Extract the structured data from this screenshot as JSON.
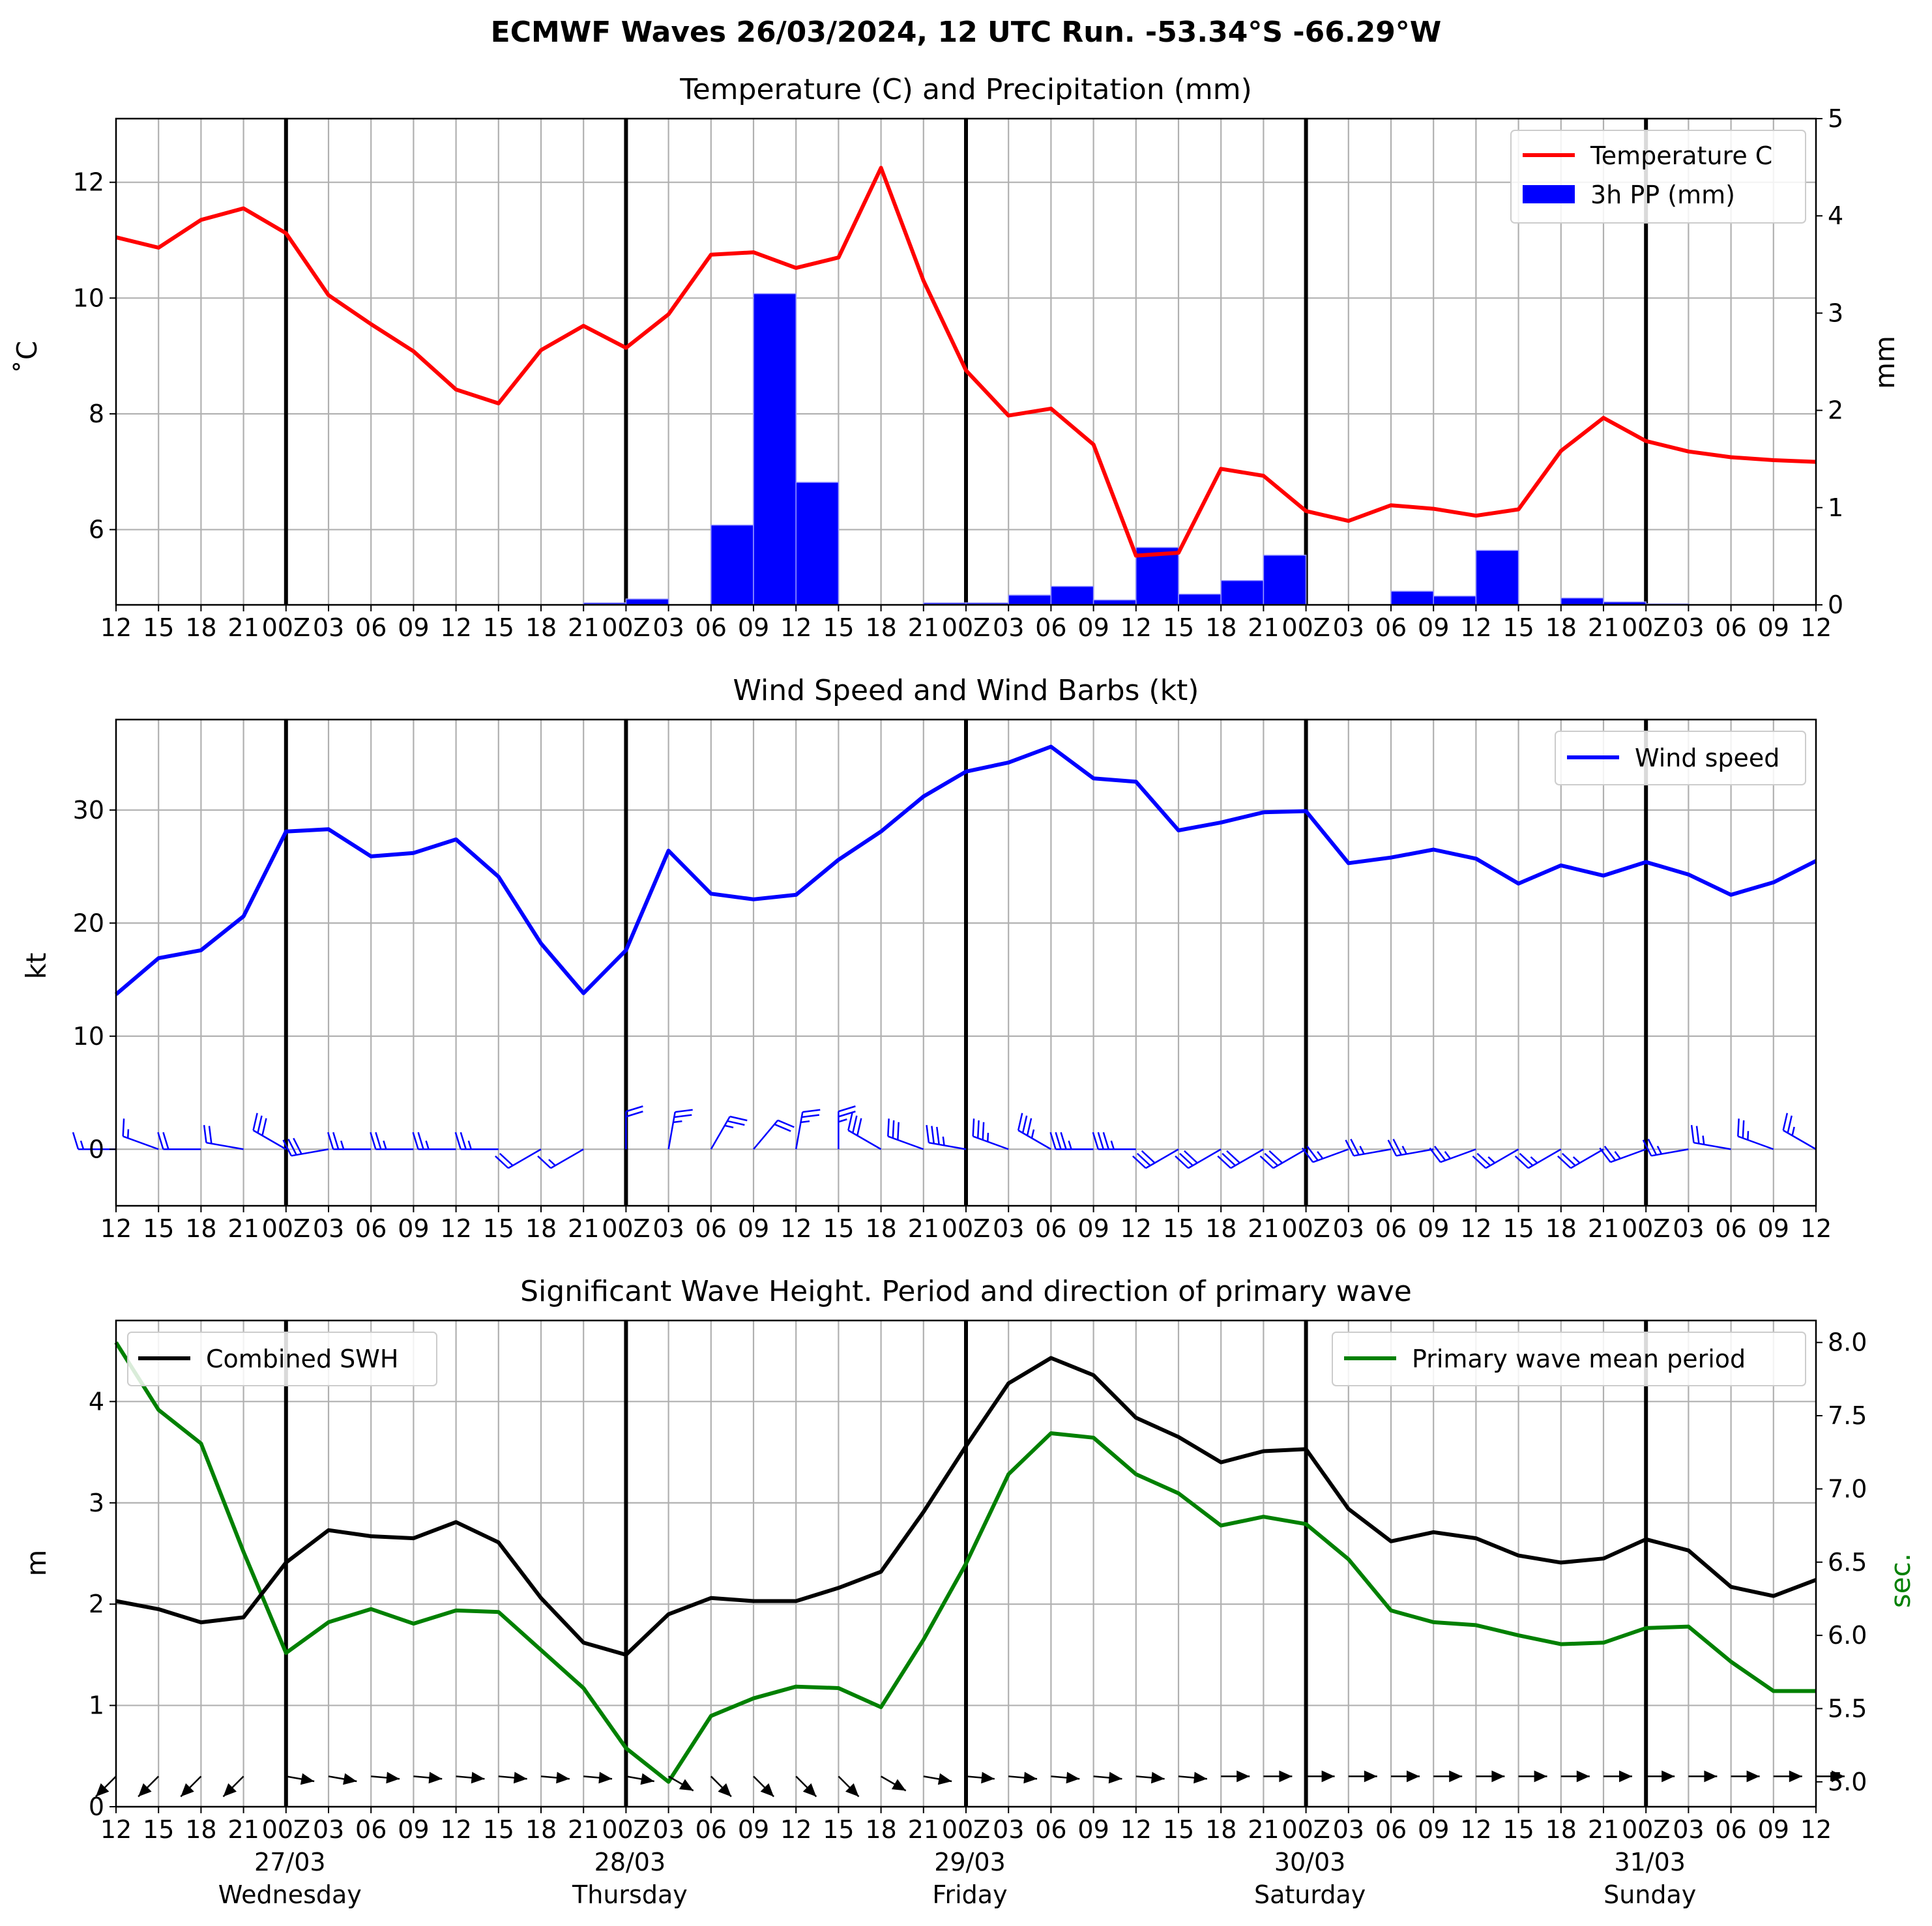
{
  "chart_data": [
    {
      "type": "line",
      "title": "ECMWF Waves 26/03/2024, 12 UTC Run. -53.34°S -66.29°W",
      "subtitle": "Temperature (C) and Precipitation (mm)",
      "ylabel": "$^\\circ$C",
      "ylabel_display": "˚C",
      "y2label": "mm",
      "ylim": [
        4.7,
        13.1
      ],
      "y2lim": [
        0,
        5
      ],
      "yticks": [
        6,
        8,
        10,
        12
      ],
      "y2ticks": [
        0,
        1,
        2,
        3,
        4,
        5
      ],
      "x_tick_labels": [
        "12",
        "15",
        "18",
        "21",
        "00Z",
        "03",
        "06",
        "09",
        "12",
        "15",
        "18",
        "21",
        "00Z",
        "03",
        "06",
        "09",
        "12",
        "15",
        "18",
        "21",
        "00Z",
        "03",
        "06",
        "09",
        "12",
        "15",
        "18",
        "21",
        "00Z",
        "03",
        "06",
        "09",
        "12",
        "15",
        "18",
        "21",
        "00Z",
        "03",
        "06",
        "09",
        "12"
      ],
      "grid": true,
      "legend_position": "top-right",
      "series": [
        {
          "name": "Temperature C",
          "color": "#ff0000",
          "values": [
            11.05,
            10.87,
            11.35,
            11.55,
            11.12,
            10.05,
            9.55,
            9.08,
            8.42,
            8.18,
            9.1,
            9.52,
            9.14,
            9.72,
            10.75,
            10.79,
            10.52,
            10.7,
            12.25,
            10.3,
            8.75,
            7.97,
            8.09,
            7.47,
            5.55,
            5.6,
            7.05,
            6.93,
            6.32,
            6.15,
            6.42,
            6.36,
            6.24,
            6.35,
            7.36,
            7.93,
            7.53,
            7.35,
            7.25,
            7.2,
            7.17
          ]
        },
        {
          "name": "3h PP (mm)",
          "type": "bar",
          "color": "#0000ff",
          "values": [
            0,
            0,
            0,
            0,
            0,
            0,
            0,
            0,
            0,
            0,
            0,
            0.02,
            0.06,
            0,
            0.82,
            3.2,
            1.26,
            0,
            0,
            0.02,
            0.02,
            0.1,
            0.19,
            0.05,
            0.59,
            0.11,
            0.25,
            0.51,
            0,
            0,
            0.14,
            0.09,
            0.56,
            0,
            0.07,
            0.03,
            0.01,
            0,
            0,
            0,
            0
          ]
        }
      ]
    },
    {
      "type": "line",
      "subtitle": "Wind Speed and Wind Barbs (kt)",
      "ylabel": "kt",
      "ylim": [
        -5,
        38
      ],
      "yticks": [
        0,
        10,
        20,
        30
      ],
      "x_tick_labels": [
        "12",
        "15",
        "18",
        "21",
        "00Z",
        "03",
        "06",
        "09",
        "12",
        "15",
        "18",
        "21",
        "00Z",
        "03",
        "06",
        "09",
        "12",
        "15",
        "18",
        "21",
        "00Z",
        "03",
        "06",
        "09",
        "12",
        "15",
        "18",
        "21",
        "00Z",
        "03",
        "06",
        "09",
        "12",
        "15",
        "18",
        "21",
        "00Z",
        "03",
        "06",
        "09",
        "12"
      ],
      "grid": true,
      "legend_position": "top-right",
      "series": [
        {
          "name": "Wind speed",
          "color": "#0000ff",
          "values": [
            13.7,
            16.9,
            17.6,
            20.6,
            28.1,
            28.3,
            25.9,
            26.2,
            27.4,
            24.1,
            18.2,
            13.8,
            17.6,
            26.4,
            22.6,
            22.1,
            22.5,
            25.6,
            28.1,
            31.2,
            33.4,
            34.2,
            35.6,
            32.8,
            32.5,
            28.2,
            28.9,
            29.8,
            29.9,
            25.3,
            25.8,
            26.5,
            25.7,
            23.5,
            25.1,
            24.2,
            25.4,
            24.3,
            22.5,
            23.6,
            25.5
          ]
        }
      ],
      "wind_barbs": {
        "color": "#0000ff",
        "level": 0,
        "speed_kt": [
          13.7,
          16.9,
          17.6,
          20.6,
          28.1,
          28.3,
          25.9,
          26.2,
          27.4,
          24.1,
          18.2,
          13.8,
          17.6,
          26.4,
          22.6,
          22.1,
          22.5,
          25.6,
          28.1,
          31.2,
          33.4,
          34.2,
          35.6,
          32.8,
          32.5,
          28.2,
          28.9,
          29.8,
          29.9,
          25.3,
          25.8,
          26.5,
          25.7,
          23.5,
          25.1,
          24.2,
          25.4,
          24.3,
          22.5,
          23.6,
          25.5
        ],
        "direction_deg": [
          270,
          290,
          270,
          280,
          300,
          260,
          270,
          270,
          270,
          270,
          240,
          240,
          0,
          10,
          30,
          40,
          10,
          0,
          300,
          290,
          280,
          290,
          300,
          270,
          270,
          240,
          240,
          240,
          240,
          250,
          260,
          260,
          250,
          240,
          240,
          240,
          250,
          260,
          280,
          290,
          300
        ]
      }
    },
    {
      "type": "line",
      "subtitle": "Significant Wave Height. Period and direction of primary wave",
      "ylabel": "m",
      "y2label": "sec.",
      "ylim": [
        0,
        4.8
      ],
      "y2lim": [
        4.83,
        8.15
      ],
      "yticks": [
        0,
        1,
        2,
        3,
        4
      ],
      "y2ticks": [
        5.0,
        5.5,
        6.0,
        6.5,
        7.0,
        7.5,
        8.0
      ],
      "x_tick_labels": [
        "12",
        "15",
        "18",
        "21",
        "00Z",
        "03",
        "06",
        "09",
        "12",
        "15",
        "18",
        "21",
        "00Z",
        "03",
        "06",
        "09",
        "12",
        "15",
        "18",
        "21",
        "00Z",
        "03",
        "06",
        "09",
        "12",
        "15",
        "18",
        "21",
        "00Z",
        "03",
        "06",
        "09",
        "12",
        "15",
        "18",
        "21",
        "00Z",
        "03",
        "06",
        "09",
        "12"
      ],
      "date_labels": [
        {
          "date": "27/03",
          "day": "Wednesday"
        },
        {
          "date": "28/03",
          "day": "Thursday"
        },
        {
          "date": "29/03",
          "day": "Friday"
        },
        {
          "date": "30/03",
          "day": "Saturday"
        },
        {
          "date": "31/03",
          "day": "Sunday"
        }
      ],
      "grid": true,
      "series": [
        {
          "name": "Combined SWH",
          "color": "#000000",
          "legend_position": "top-left",
          "values": [
            2.03,
            1.95,
            1.82,
            1.87,
            2.41,
            2.73,
            2.67,
            2.65,
            2.81,
            2.61,
            2.06,
            1.62,
            1.5,
            1.9,
            2.06,
            2.03,
            2.03,
            2.16,
            2.32,
            2.91,
            3.56,
            4.18,
            4.43,
            4.26,
            3.84,
            3.65,
            3.4,
            3.51,
            3.53,
            2.94,
            2.62,
            2.71,
            2.65,
            2.48,
            2.41,
            2.45,
            2.64,
            2.53,
            2.17,
            2.08,
            2.24
          ]
        },
        {
          "name": "Primary wave mean period",
          "color": "#008000",
          "axis": "right",
          "legend_position": "top-right",
          "values": [
            8.0,
            7.54,
            7.31,
            6.57,
            5.88,
            6.09,
            6.18,
            6.08,
            6.17,
            6.16,
            5.9,
            5.64,
            5.23,
            5.0,
            5.45,
            5.57,
            5.65,
            5.64,
            5.51,
            5.97,
            6.49,
            7.1,
            7.38,
            7.35,
            7.1,
            6.97,
            6.75,
            6.81,
            6.76,
            6.52,
            6.17,
            6.09,
            6.07,
            6.0,
            5.94,
            5.95,
            6.05,
            6.06,
            5.82,
            5.62,
            5.62
          ]
        }
      ],
      "wave_direction_deg": [
        225,
        225,
        225,
        225,
        100,
        100,
        95,
        95,
        95,
        95,
        95,
        95,
        100,
        120,
        135,
        135,
        135,
        135,
        120,
        100,
        95,
        95,
        95,
        95,
        95,
        95,
        90,
        90,
        90,
        90,
        90,
        90,
        90,
        90,
        90,
        90,
        90,
        90,
        90,
        90,
        90
      ]
    }
  ]
}
